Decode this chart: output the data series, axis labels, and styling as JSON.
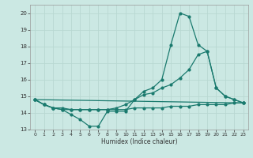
{
  "xlabel": "Humidex (Indice chaleur)",
  "bg_color": "#cbe8e3",
  "grid_color": "#b8d8d2",
  "line_color": "#1a7a6e",
  "ylim": [
    13,
    20.5
  ],
  "xlim": [
    -0.5,
    23.5
  ],
  "yticks": [
    13,
    14,
    15,
    16,
    17,
    18,
    19,
    20
  ],
  "xticks": [
    0,
    1,
    2,
    3,
    4,
    5,
    6,
    7,
    8,
    9,
    10,
    11,
    12,
    13,
    14,
    15,
    16,
    17,
    18,
    19,
    20,
    21,
    22,
    23
  ],
  "line1_x": [
    0,
    1,
    2,
    3,
    4,
    5,
    6,
    7,
    8,
    9,
    10,
    11,
    12,
    13,
    14,
    15,
    16,
    17,
    18,
    19,
    20,
    21,
    22,
    23
  ],
  "line1_y": [
    14.8,
    14.5,
    14.3,
    14.2,
    13.9,
    13.6,
    13.2,
    13.2,
    14.1,
    14.1,
    14.1,
    14.8,
    15.3,
    15.5,
    16.0,
    18.1,
    20.0,
    19.8,
    18.1,
    17.7,
    15.5,
    15.0,
    14.8,
    14.6
  ],
  "line2_x": [
    0,
    1,
    2,
    3,
    4,
    5,
    6,
    7,
    8,
    9,
    10,
    11,
    12,
    13,
    14,
    15,
    16,
    17,
    18,
    19,
    20,
    21,
    22,
    23
  ],
  "line2_y": [
    14.8,
    14.5,
    14.3,
    14.2,
    14.2,
    14.2,
    14.2,
    14.2,
    14.2,
    14.3,
    14.5,
    14.8,
    15.1,
    15.2,
    15.5,
    15.7,
    16.1,
    16.6,
    17.5,
    17.7,
    15.5,
    15.0,
    14.8,
    14.6
  ],
  "line3_x": [
    0,
    23
  ],
  "line3_y": [
    14.8,
    14.6
  ],
  "line4_x": [
    0,
    1,
    2,
    3,
    4,
    5,
    6,
    7,
    8,
    9,
    10,
    11,
    12,
    13,
    14,
    15,
    16,
    17,
    18,
    19,
    20,
    21,
    22,
    23
  ],
  "line4_y": [
    14.8,
    14.5,
    14.3,
    14.3,
    14.2,
    14.2,
    14.2,
    14.2,
    14.2,
    14.2,
    14.2,
    14.3,
    14.3,
    14.3,
    14.3,
    14.4,
    14.4,
    14.4,
    14.5,
    14.5,
    14.5,
    14.5,
    14.6,
    14.6
  ]
}
